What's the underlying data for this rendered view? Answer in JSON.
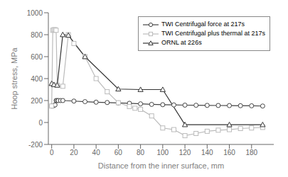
{
  "chart_data": {
    "type": "line",
    "xlabel": "Distance from the inner surface, mm",
    "ylabel": "Hoop stress, MPa",
    "xlim": [
      -3,
      200
    ],
    "ylim": [
      -200,
      1000
    ],
    "xticks": [
      0,
      20,
      40,
      60,
      80,
      100,
      120,
      140,
      160,
      180
    ],
    "yticks": [
      -200,
      0,
      200,
      400,
      600,
      800,
      1000
    ],
    "grid": false,
    "legend": "upper right",
    "series": [
      {
        "name": "TWI Centrifugal force at 217s",
        "color": "#444444",
        "marker": "circle",
        "x": [
          0,
          1,
          2,
          3,
          4,
          5,
          6,
          8,
          10,
          20,
          30,
          40,
          50,
          60,
          70,
          80,
          90,
          100,
          110,
          120,
          130,
          140,
          150,
          160,
          170,
          180,
          190
        ],
        "values": [
          150,
          150,
          155,
          160,
          200,
          200,
          200,
          200,
          200,
          195,
          190,
          185,
          182,
          178,
          175,
          170,
          165,
          162,
          160,
          158,
          157,
          156,
          155,
          154,
          153,
          152,
          150
        ]
      },
      {
        "name": "TWI Centrifugal plus thermal at 217s",
        "color": "#bbbbbb",
        "marker": "square",
        "x": [
          0,
          1,
          2,
          3,
          4,
          5,
          10,
          15,
          20,
          30,
          40,
          50,
          60,
          70,
          75,
          80,
          90,
          100,
          110,
          120,
          130,
          140,
          150,
          160,
          170,
          180,
          190
        ],
        "values": [
          150,
          840,
          845,
          845,
          840,
          340,
          330,
          800,
          720,
          600,
          400,
          280,
          180,
          145,
          130,
          120,
          60,
          -50,
          -65,
          -120,
          -100,
          -80,
          -70,
          -65,
          -55,
          -50,
          -45
        ]
      },
      {
        "name": "ORNL at 226s",
        "color": "#333333",
        "marker": "triangle",
        "x": [
          0,
          2,
          5,
          10,
          15,
          30,
          60,
          80,
          100,
          120,
          160,
          190
        ],
        "values": [
          355,
          345,
          340,
          800,
          795,
          600,
          305,
          300,
          300,
          -20,
          -20,
          -20
        ]
      }
    ]
  }
}
